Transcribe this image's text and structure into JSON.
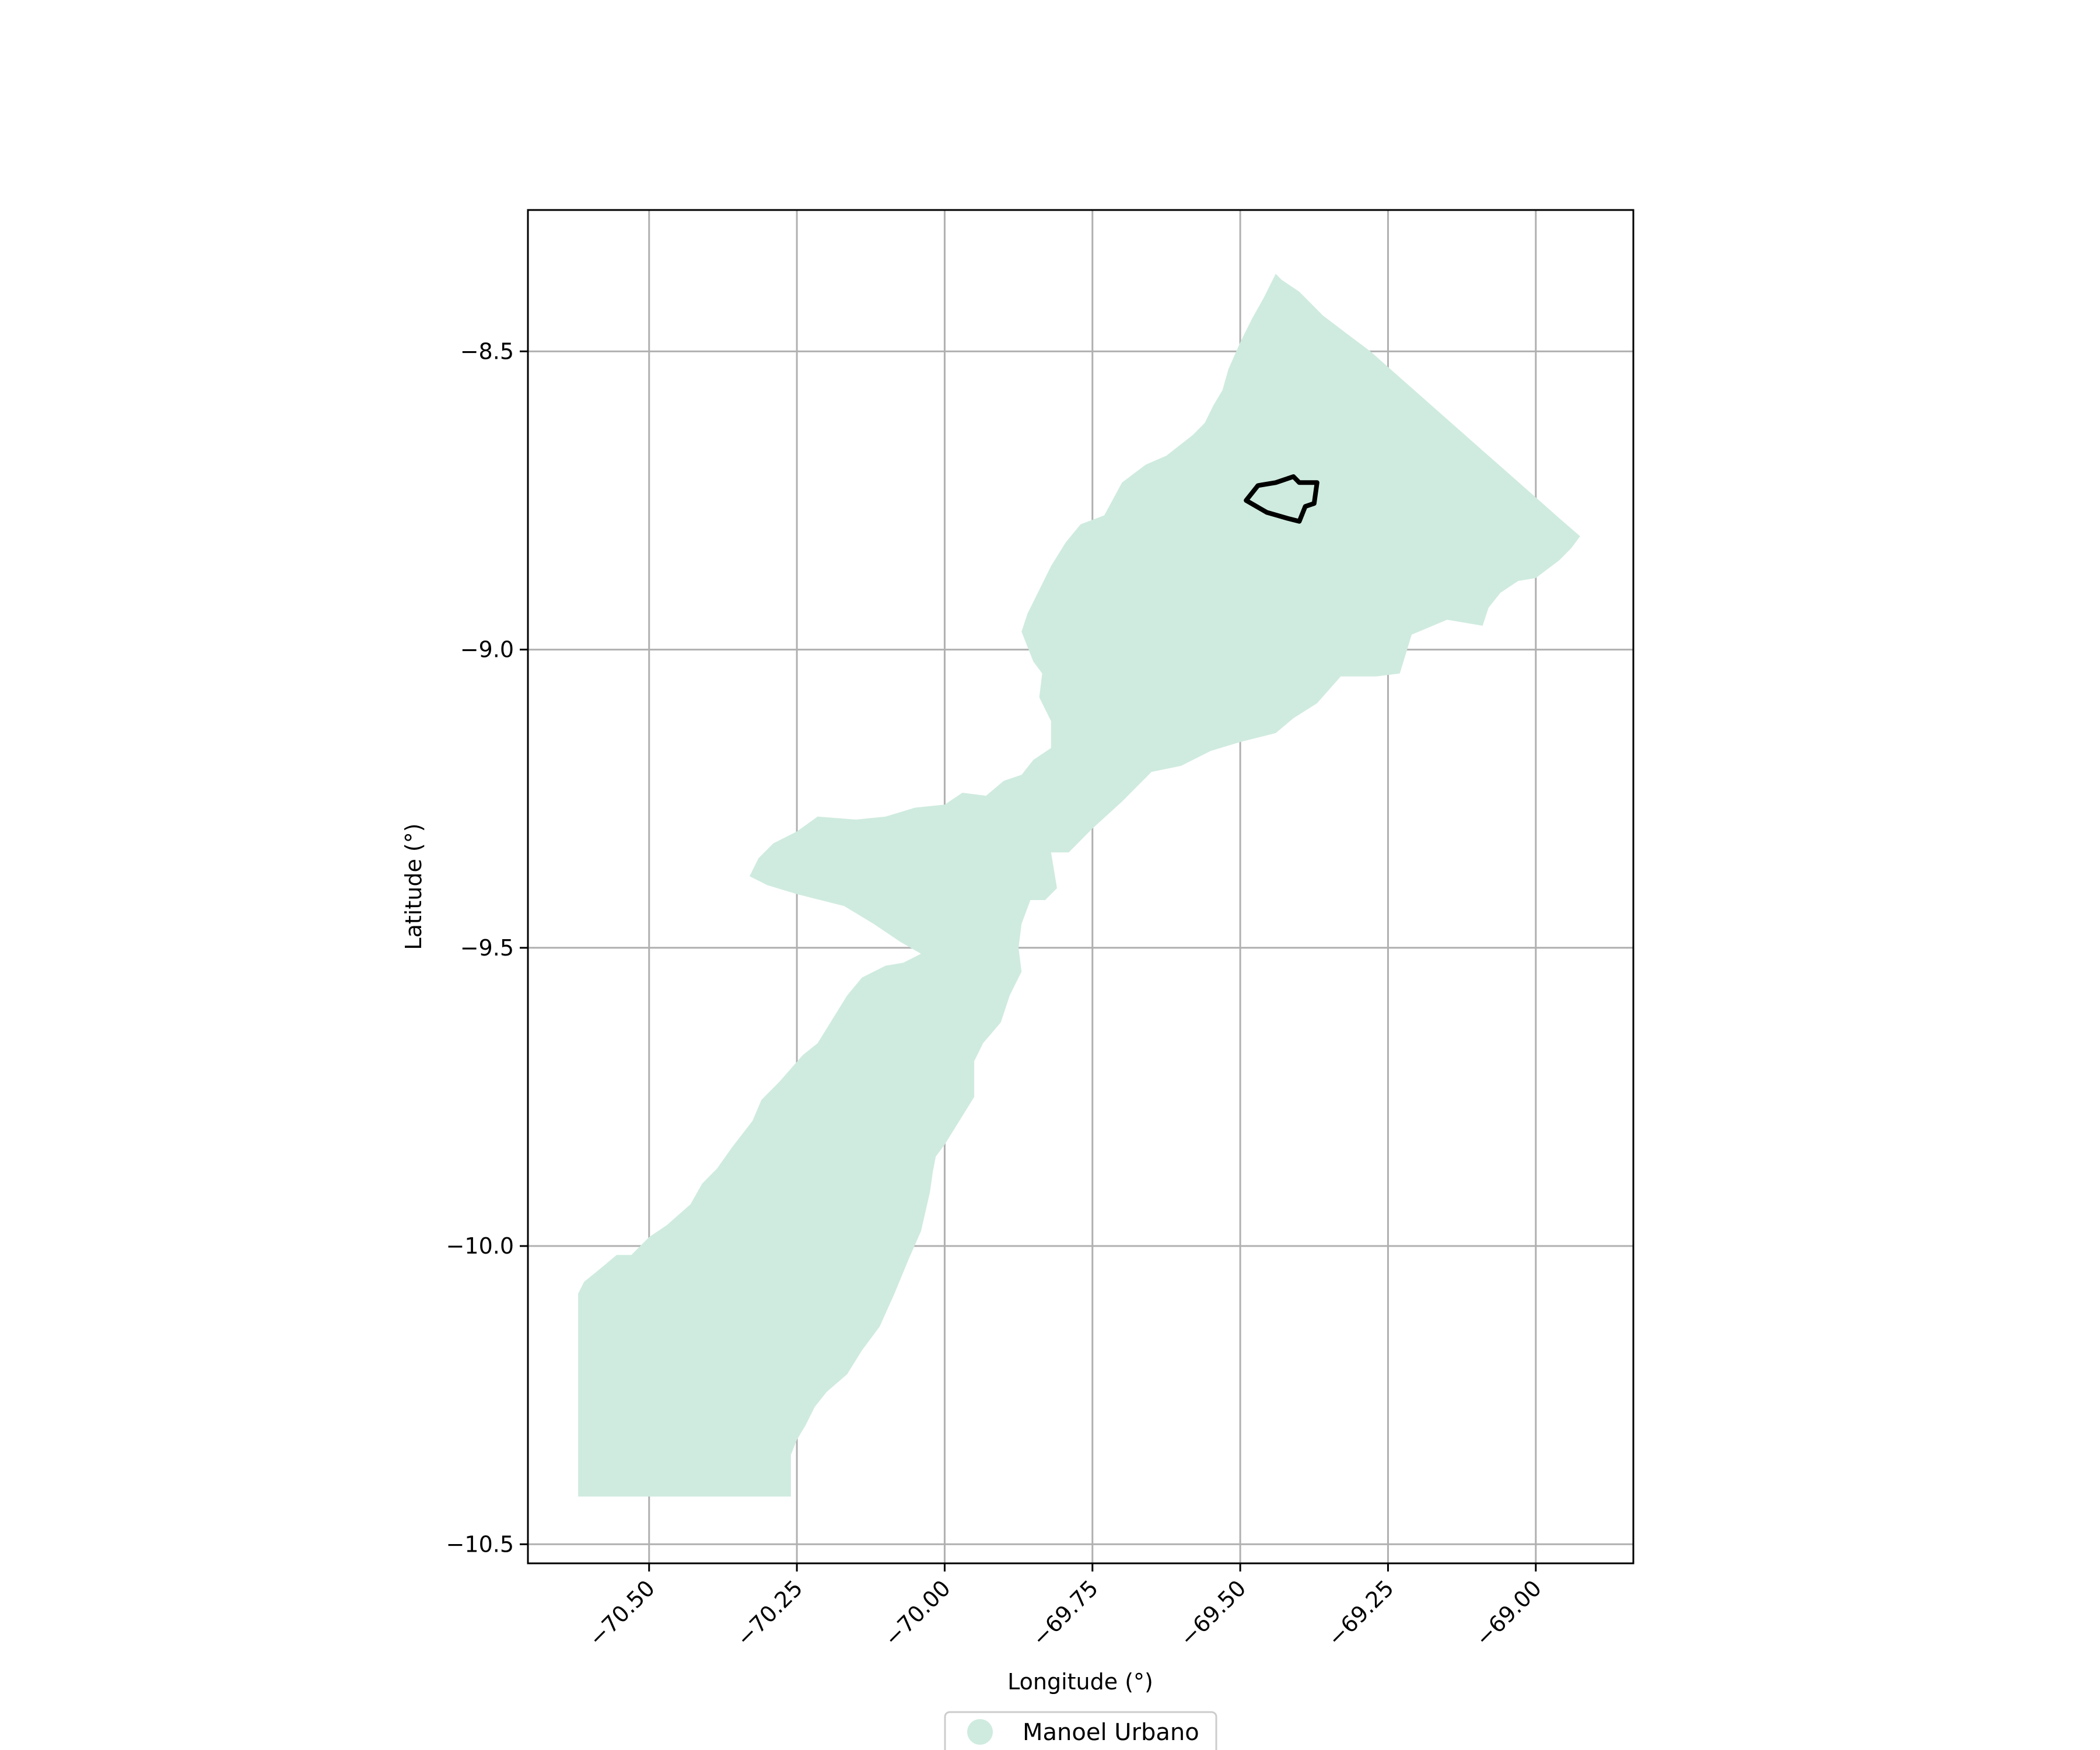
{
  "chart_data": {
    "type": "map",
    "xlabel": "Longitude (°)",
    "ylabel": "Latitude (°)",
    "xlim": [
      -70.705,
      -68.835
    ],
    "ylim": [
      -10.532,
      -8.263
    ],
    "x_ticks": [
      -70.5,
      -70.25,
      -70.0,
      -69.75,
      -69.5,
      -69.25,
      -69.0
    ],
    "x_tick_labels": [
      "−70.50",
      "−70.25",
      "−70.00",
      "−69.75",
      "−69.50",
      "−69.25",
      "−69.00"
    ],
    "y_ticks": [
      -8.5,
      -9.0,
      -9.5,
      -10.0,
      -10.5
    ],
    "y_tick_labels": [
      "−8.5",
      "−9.0",
      "−9.5",
      "−10.0",
      "−10.5"
    ],
    "grid": true,
    "legend": {
      "placement": "bottom-center",
      "entries": [
        {
          "label": "Manoel Urbano",
          "color": "#cfebdf"
        }
      ]
    },
    "regions": [
      {
        "name": "Manoel Urbano",
        "fill": "#cfebdf",
        "coords": [
          [
            -69.44,
            -8.37
          ],
          [
            -69.43,
            -8.38
          ],
          [
            -69.4,
            -8.4
          ],
          [
            -69.36,
            -8.44
          ],
          [
            -69.32,
            -8.47
          ],
          [
            -69.28,
            -8.5
          ],
          [
            -69.24,
            -8.535
          ],
          [
            -69.2,
            -8.57
          ],
          [
            -69.16,
            -8.605
          ],
          [
            -69.12,
            -8.64
          ],
          [
            -69.08,
            -8.675
          ],
          [
            -69.04,
            -8.71
          ],
          [
            -69.0,
            -8.745
          ],
          [
            -68.96,
            -8.78
          ],
          [
            -68.925,
            -8.81
          ],
          [
            -68.94,
            -8.83
          ],
          [
            -68.96,
            -8.85
          ],
          [
            -68.98,
            -8.865
          ],
          [
            -69.0,
            -8.88
          ],
          [
            -69.03,
            -8.885
          ],
          [
            -69.06,
            -8.905
          ],
          [
            -69.08,
            -8.93
          ],
          [
            -69.09,
            -8.96
          ],
          [
            -69.15,
            -8.95
          ],
          [
            -69.21,
            -8.975
          ],
          [
            -69.23,
            -9.04
          ],
          [
            -69.27,
            -9.045
          ],
          [
            -69.33,
            -9.045
          ],
          [
            -69.37,
            -9.09
          ],
          [
            -69.41,
            -9.115
          ],
          [
            -69.44,
            -9.14
          ],
          [
            -69.5,
            -9.155
          ],
          [
            -69.55,
            -9.17
          ],
          [
            -69.6,
            -9.195
          ],
          [
            -69.65,
            -9.205
          ],
          [
            -69.7,
            -9.255
          ],
          [
            -69.75,
            -9.3
          ],
          [
            -69.79,
            -9.34
          ],
          [
            -69.82,
            -9.34
          ],
          [
            -69.81,
            -9.4
          ],
          [
            -69.83,
            -9.42
          ],
          [
            -69.855,
            -9.42
          ],
          [
            -69.87,
            -9.46
          ],
          [
            -69.875,
            -9.5
          ],
          [
            -69.87,
            -9.54
          ],
          [
            -69.89,
            -9.58
          ],
          [
            -69.905,
            -9.625
          ],
          [
            -69.935,
            -9.66
          ],
          [
            -69.95,
            -9.69
          ],
          [
            -69.95,
            -9.75
          ],
          [
            -69.975,
            -9.79
          ],
          [
            -70.0,
            -9.83
          ],
          [
            -70.015,
            -9.85
          ],
          [
            -70.02,
            -9.875
          ],
          [
            -70.025,
            -9.91
          ],
          [
            -70.04,
            -9.975
          ],
          [
            -70.06,
            -10.02
          ],
          [
            -70.085,
            -10.08
          ],
          [
            -70.11,
            -10.135
          ],
          [
            -70.14,
            -10.175
          ],
          [
            -70.165,
            -10.215
          ],
          [
            -70.2,
            -10.245
          ],
          [
            -70.22,
            -10.27
          ],
          [
            -70.235,
            -10.3
          ],
          [
            -70.25,
            -10.325
          ],
          [
            -70.26,
            -10.35
          ],
          [
            -70.26,
            -10.42
          ],
          [
            -70.34,
            -10.42
          ],
          [
            -70.43,
            -10.42
          ],
          [
            -70.52,
            -10.42
          ],
          [
            -70.62,
            -10.42
          ],
          [
            -70.62,
            -10.08
          ],
          [
            -70.61,
            -10.06
          ],
          [
            -70.585,
            -10.04
          ],
          [
            -70.555,
            -10.015
          ],
          [
            -70.53,
            -10.015
          ],
          [
            -70.5,
            -9.985
          ],
          [
            -70.47,
            -9.965
          ],
          [
            -70.43,
            -9.93
          ],
          [
            -70.41,
            -9.895
          ],
          [
            -70.385,
            -9.87
          ],
          [
            -70.36,
            -9.835
          ],
          [
            -70.325,
            -9.79
          ],
          [
            -70.31,
            -9.755
          ],
          [
            -70.28,
            -9.725
          ],
          [
            -70.24,
            -9.68
          ],
          [
            -70.215,
            -9.66
          ],
          [
            -70.19,
            -9.62
          ],
          [
            -70.165,
            -9.58
          ],
          [
            -70.14,
            -9.55
          ],
          [
            -70.1,
            -9.53
          ],
          [
            -70.07,
            -9.525
          ],
          [
            -70.04,
            -9.51
          ],
          [
            -70.075,
            -9.49
          ],
          [
            -70.12,
            -9.46
          ],
          [
            -70.17,
            -9.43
          ],
          [
            -70.21,
            -9.42
          ],
          [
            -70.25,
            -9.41
          ],
          [
            -70.3,
            -9.395
          ],
          [
            -70.33,
            -9.38
          ],
          [
            -70.315,
            -9.35
          ],
          [
            -70.29,
            -9.325
          ],
          [
            -70.25,
            -9.305
          ],
          [
            -70.215,
            -9.28
          ],
          [
            -70.15,
            -9.285
          ],
          [
            -70.1,
            -9.28
          ],
          [
            -70.05,
            -9.265
          ],
          [
            -70.0,
            -9.26
          ],
          [
            -69.97,
            -9.24
          ],
          [
            -69.93,
            -9.245
          ],
          [
            -69.9,
            -9.22
          ],
          [
            -69.87,
            -9.21
          ],
          [
            -69.85,
            -9.185
          ],
          [
            -69.82,
            -9.165
          ],
          [
            -69.82,
            -9.12
          ],
          [
            -69.84,
            -9.08
          ],
          [
            -69.835,
            -9.04
          ],
          [
            -69.85,
            -9.02
          ],
          [
            -69.87,
            -8.97
          ],
          [
            -69.86,
            -8.94
          ],
          [
            -69.84,
            -8.9
          ],
          [
            -69.82,
            -8.86
          ],
          [
            -69.795,
            -8.82
          ],
          [
            -69.77,
            -8.79
          ],
          [
            -69.73,
            -8.775
          ],
          [
            -69.7,
            -8.72
          ],
          [
            -69.66,
            -8.69
          ],
          [
            -69.625,
            -8.675
          ],
          [
            -69.58,
            -8.64
          ],
          [
            -69.56,
            -8.62
          ],
          [
            -69.545,
            -8.59
          ],
          [
            -69.53,
            -8.565
          ],
          [
            -69.52,
            -8.53
          ],
          [
            -69.5,
            -8.485
          ],
          [
            -69.48,
            -8.445
          ],
          [
            -69.46,
            -8.41
          ],
          [
            -69.445,
            -8.38
          ]
        ]
      },
      {
        "name": "",
        "outline_only": true,
        "stroke": "#000000",
        "coords": [
          [
            -69.49,
            -8.75
          ],
          [
            -69.47,
            -8.725
          ],
          [
            -69.44,
            -8.72
          ],
          [
            -69.425,
            -8.715
          ],
          [
            -69.41,
            -8.71
          ],
          [
            -69.4,
            -8.72
          ],
          [
            -69.37,
            -8.72
          ],
          [
            -69.375,
            -8.755
          ],
          [
            -69.39,
            -8.76
          ],
          [
            -69.4,
            -8.785
          ],
          [
            -69.42,
            -8.78
          ],
          [
            -69.455,
            -8.77
          ],
          [
            -69.49,
            -8.75
          ]
        ]
      }
    ]
  }
}
